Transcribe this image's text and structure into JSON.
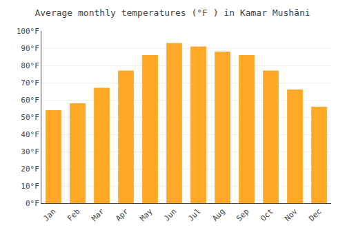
{
  "chart_data": {
    "type": "bar",
    "title": "Average monthly temperatures (°F ) in Kamar Mushāni",
    "categories": [
      "Jan",
      "Feb",
      "Mar",
      "Apr",
      "May",
      "Jun",
      "Jul",
      "Aug",
      "Sep",
      "Oct",
      "Nov",
      "Dec"
    ],
    "values": [
      54,
      58,
      67,
      77,
      86,
      93,
      91,
      88,
      86,
      77,
      66,
      56
    ],
    "color": "#FFA726",
    "ylim": [
      0,
      100
    ],
    "yticks": [
      {
        "value": 0,
        "label": "0°F"
      },
      {
        "value": 10,
        "label": "10°F"
      },
      {
        "value": 20,
        "label": "20°F"
      },
      {
        "value": 30,
        "label": "30°F"
      },
      {
        "value": 40,
        "label": "40°F"
      },
      {
        "value": 50,
        "label": "50°F"
      },
      {
        "value": 60,
        "label": "60°F"
      },
      {
        "value": 70,
        "label": "70°F"
      },
      {
        "value": 80,
        "label": "80°F"
      },
      {
        "value": 90,
        "label": "90°F"
      },
      {
        "value": 100,
        "label": "100°F"
      }
    ],
    "grid": true
  }
}
